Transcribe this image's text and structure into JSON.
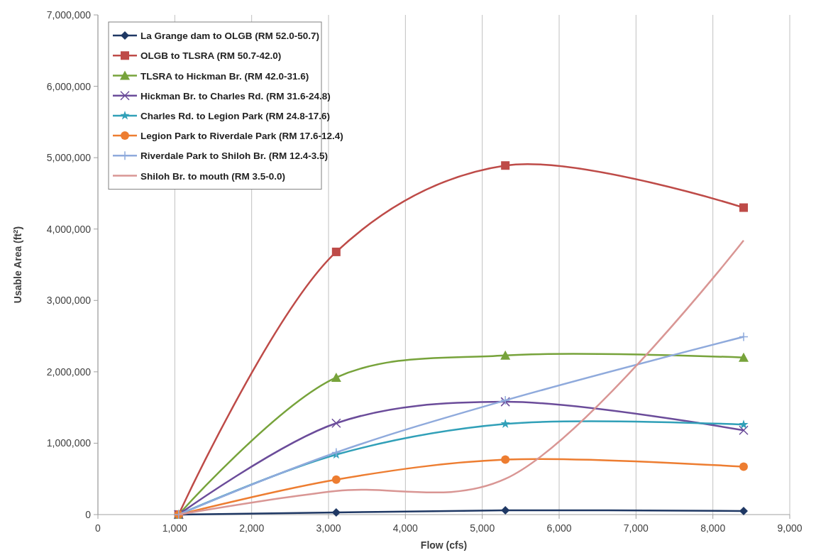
{
  "chart_data": {
    "type": "line",
    "xlabel": "Flow (cfs)",
    "ylabel": "Usable Area (ft$^{2}$)",
    "x": [
      1050,
      3100,
      5300,
      8400
    ],
    "xlim": [
      0,
      9000
    ],
    "xticks": [
      {
        "value": 0,
        "label": "0"
      },
      {
        "value": 1000,
        "label": "1,000"
      },
      {
        "value": 2000,
        "label": "2,000"
      },
      {
        "value": 3000,
        "label": "3,000"
      },
      {
        "value": 4000,
        "label": "4,000"
      },
      {
        "value": 5000,
        "label": "5,000"
      },
      {
        "value": 6000,
        "label": "6,000"
      },
      {
        "value": 7000,
        "label": "7,000"
      },
      {
        "value": 8000,
        "label": "8,000"
      },
      {
        "value": 9000,
        "label": "9,000"
      }
    ],
    "ylim": [
      0,
      7000000
    ],
    "yticks": [
      {
        "value": 0,
        "label": "0"
      },
      {
        "value": 1000000,
        "label": "1,000,000"
      },
      {
        "value": 2000000,
        "label": "2,000,000"
      },
      {
        "value": 3000000,
        "label": "3,000,000"
      },
      {
        "value": 4000000,
        "label": "4,000,000"
      },
      {
        "value": 5000000,
        "label": "5,000,000"
      },
      {
        "value": 6000000,
        "label": "6,000,000"
      },
      {
        "value": 7000000,
        "label": "7,000,000"
      }
    ],
    "grid": "x",
    "legend": "top left",
    "line_style": "solid",
    "series": [
      {
        "name": "La Grange dam to OLGB (RM 52.0-50.7)",
        "color": "#1f3864",
        "marker": "diamond",
        "values": [
          0,
          30000,
          60000,
          50000
        ]
      },
      {
        "name": "OLGB to TLSRA (RM 50.7-42.0)",
        "color": "#be4b48",
        "marker": "square",
        "values": [
          0,
          3680000,
          4890000,
          4300000
        ]
      },
      {
        "name": "TLSRA to Hickman Br. (RM 42.0-31.6)",
        "color": "#77a33b",
        "marker": "triangle",
        "values": [
          0,
          1920000,
          2230000,
          2200000
        ]
      },
      {
        "name": "Hickman Br. to Charles Rd. (RM 31.6-24.8)",
        "color": "#6b4c9a",
        "marker": "cross",
        "values": [
          0,
          1280000,
          1580000,
          1180000
        ]
      },
      {
        "name": "Charles Rd. to Legion Park (RM 24.8-17.6)",
        "color": "#31a0b8",
        "marker": "star",
        "values": [
          0,
          840000,
          1270000,
          1260000
        ]
      },
      {
        "name": "Legion Park to Riverdale Park (RM 17.6-12.4)",
        "color": "#ed7d31",
        "marker": "circle",
        "values": [
          0,
          490000,
          770000,
          670000
        ]
      },
      {
        "name": "Riverdale Park to Shiloh Br. (RM 12.4-3.5)",
        "color": "#8faadc",
        "marker": "plus",
        "values": [
          0,
          870000,
          1600000,
          2490000
        ]
      },
      {
        "name": "Shiloh Br. to mouth (RM 3.5-0.0)",
        "color": "#d99694",
        "marker": "none",
        "values": [
          0,
          330000,
          500000,
          3840000
        ]
      }
    ]
  }
}
